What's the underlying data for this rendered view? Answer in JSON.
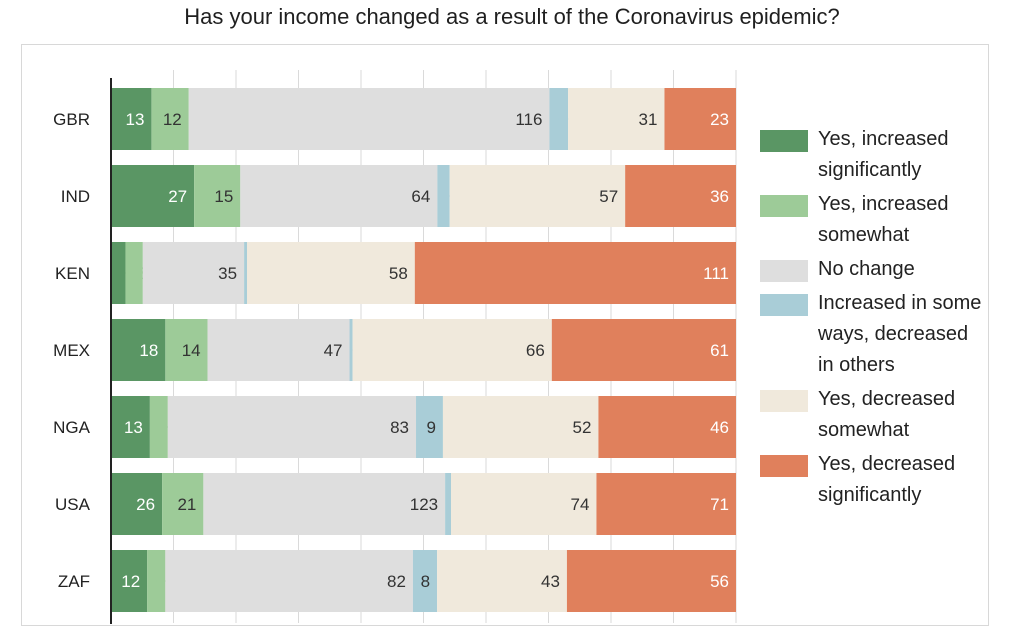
{
  "chart_data": {
    "type": "bar",
    "orientation": "horizontal",
    "stacked": true,
    "normalized": true,
    "title": "Has your income changed as a result of the Coronavirus epidemic?",
    "categories": [
      "GBR",
      "IND",
      "KEN",
      "MEX",
      "NGA",
      "USA",
      "ZAF"
    ],
    "series": [
      {
        "name": "Yes, increased significantly",
        "color": "#5a9664",
        "values": [
          13,
          27,
          5,
          18,
          13,
          26,
          12
        ]
      },
      {
        "name": "Yes, increased somewhat",
        "color": "#9dcb98",
        "values": [
          12,
          15,
          6,
          14,
          6,
          21,
          6
        ]
      },
      {
        "name": "No change",
        "color": "#dedede",
        "values": [
          116,
          64,
          35,
          47,
          83,
          123,
          82
        ]
      },
      {
        "name": "Increased in some ways, decreased in others",
        "color": "#a9cdd7",
        "values": [
          6,
          4,
          1,
          1,
          9,
          3,
          8
        ]
      },
      {
        "name": "Yes, decreased somewhat",
        "color": "#f0e9dc",
        "values": [
          31,
          57,
          58,
          66,
          52,
          74,
          43
        ]
      },
      {
        "name": "Yes, decreased significantly",
        "color": "#e0805c",
        "values": [
          23,
          36,
          111,
          61,
          46,
          71,
          56
        ]
      }
    ],
    "grid": true,
    "legend_position": "right"
  }
}
